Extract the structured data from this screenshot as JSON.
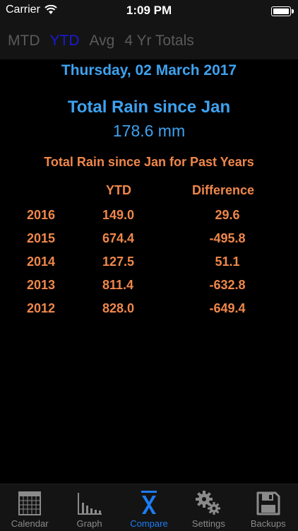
{
  "status": {
    "carrier": "Carrier",
    "time": "1:09 PM"
  },
  "segments": [
    {
      "label": "MTD",
      "active": false
    },
    {
      "label": "YTD",
      "active": true
    },
    {
      "label": "Avg",
      "active": false
    },
    {
      "label": "4 Yr Totals",
      "active": false
    }
  ],
  "date": "Thursday, 02 March 2017",
  "total": {
    "title": "Total Rain since Jan",
    "value": "178.6 mm"
  },
  "past": {
    "title": "Total Rain since Jan for Past Years",
    "headers": {
      "ytd": "YTD",
      "difference": "Difference"
    },
    "rows": [
      {
        "year": "2016",
        "ytd": "149.0",
        "difference": "29.6"
      },
      {
        "year": "2015",
        "ytd": "674.4",
        "difference": "-495.8"
      },
      {
        "year": "2014",
        "ytd": "127.5",
        "difference": "51.1"
      },
      {
        "year": "2013",
        "ytd": "811.4",
        "difference": "-632.8"
      },
      {
        "year": "2012",
        "ytd": "828.0",
        "difference": "-649.4"
      }
    ]
  },
  "tabs": [
    {
      "label": "Calendar",
      "icon": "calendar-icon"
    },
    {
      "label": "Graph",
      "icon": "bar-graph-icon"
    },
    {
      "label": "Compare",
      "icon": "mean-x-bar-icon",
      "active": true
    },
    {
      "label": "Settings",
      "icon": "gears-icon"
    },
    {
      "label": "Backups",
      "icon": "floppy-disk-icon"
    }
  ],
  "colors": {
    "accent_blue": "#3ea2ef",
    "orange": "#f0874a",
    "tab_active": "#1c7cf4",
    "segment_active": "#1a1ad6"
  }
}
